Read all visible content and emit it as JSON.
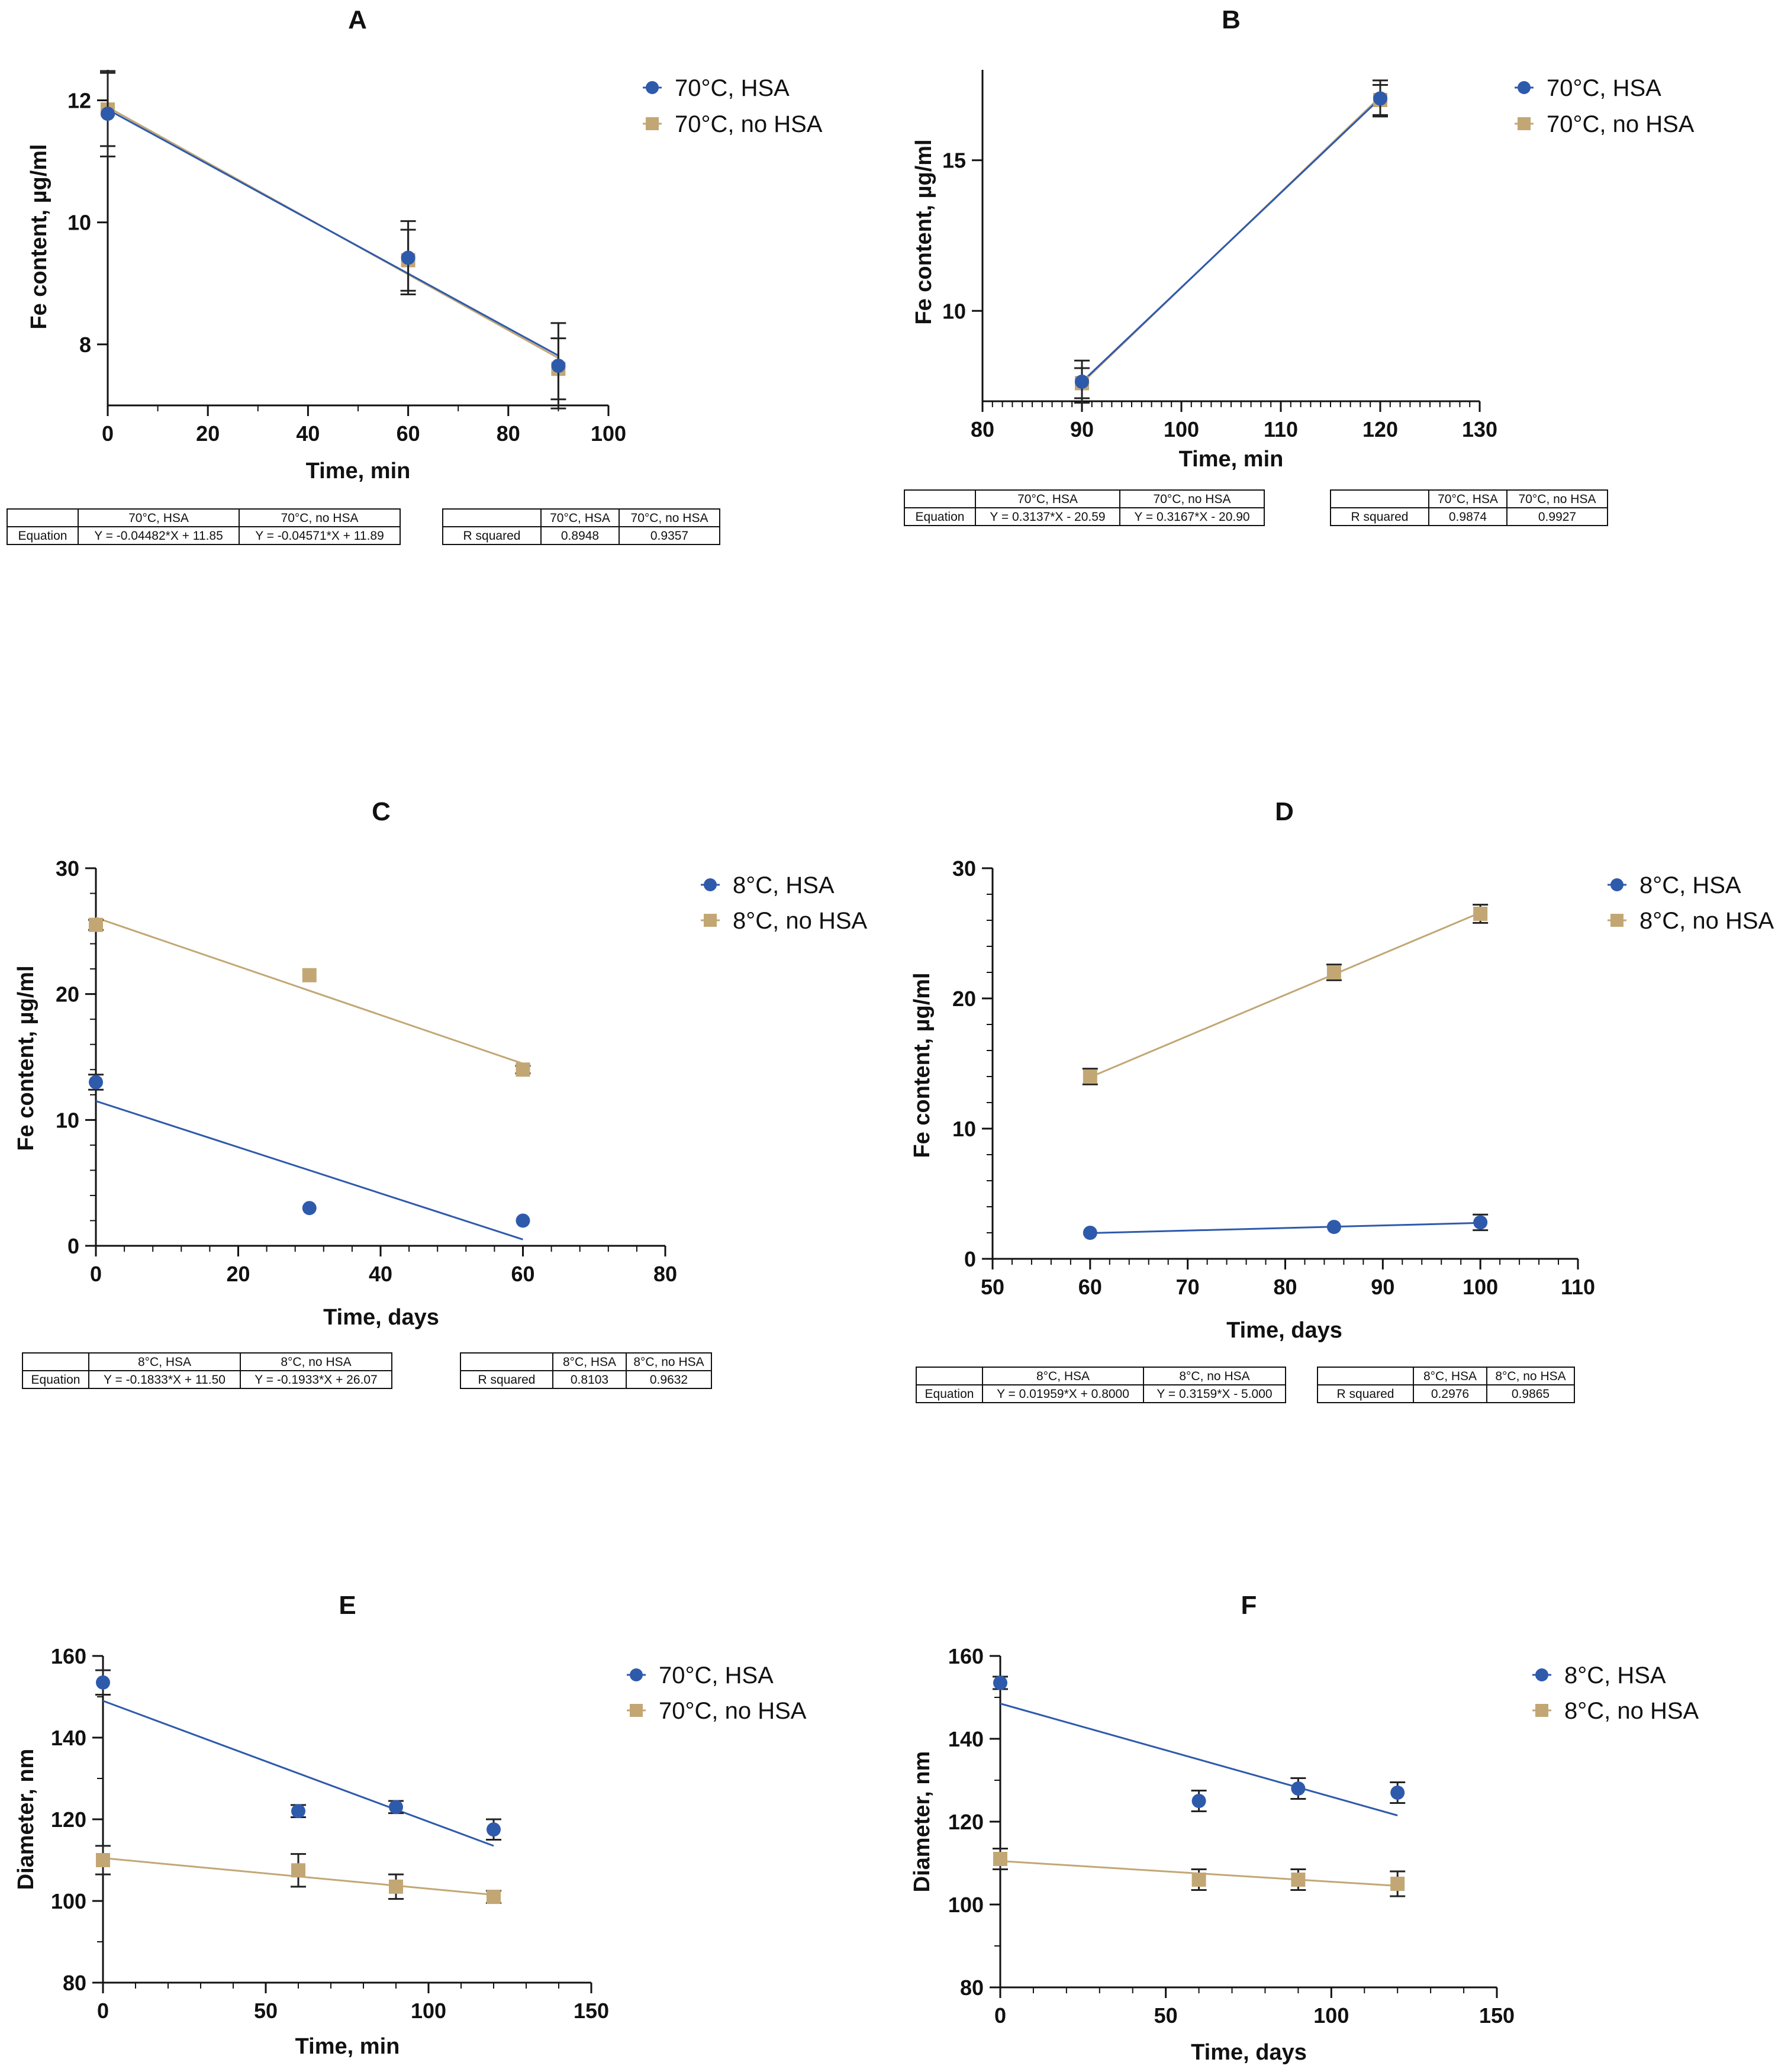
{
  "colors": {
    "hsa": "#2E5AAC",
    "no_hsa": "#C2A775"
  },
  "chart_data": [
    {
      "id": "A",
      "title": "A",
      "type": "scatter",
      "xlabel": "Time, min",
      "ylabel": "Fe content, µg/ml",
      "xlim": [
        0,
        100
      ],
      "ylim": [
        7,
        12.5
      ],
      "xticks": [
        0,
        20,
        40,
        60,
        80,
        100
      ],
      "xminor": [
        10,
        30,
        50,
        70,
        90
      ],
      "yticks": [
        8,
        10,
        12
      ],
      "yminor": [],
      "series": [
        {
          "name": "70°C, HSA",
          "color": "#2E5AAC",
          "marker": "circle",
          "points": [
            {
              "x": 0,
              "y": 11.78,
              "err": 0.7
            },
            {
              "x": 60,
              "y": 9.42,
              "err": 0.6
            },
            {
              "x": 90,
              "y": 7.65,
              "err": 0.7
            }
          ],
          "fit": {
            "slope": -0.04482,
            "intercept": 11.85,
            "x": [
              0,
              90
            ]
          }
        },
        {
          "name": "70°C, no HSA",
          "color": "#C2A775",
          "marker": "square",
          "points": [
            {
              "x": 0,
              "y": 11.85,
              "err": 0.6
            },
            {
              "x": 60,
              "y": 9.38,
              "err": 0.5
            },
            {
              "x": 90,
              "y": 7.6,
              "err": 0.5
            }
          ],
          "fit": {
            "slope": -0.04571,
            "intercept": 11.89,
            "x": [
              0,
              90
            ]
          }
        }
      ],
      "tables": [
        {
          "header": [
            "",
            "70°C, HSA",
            "70°C, no HSA"
          ],
          "row": [
            "Equation",
            "Y = -0.04482*X + 11.85",
            "Y = -0.04571*X + 11.89"
          ]
        },
        {
          "header": [
            "",
            "70°C, HSA",
            "70°C, no HSA"
          ],
          "row": [
            "R squared",
            "0.8948",
            "0.9357"
          ]
        }
      ]
    },
    {
      "id": "B",
      "title": "B",
      "type": "scatter",
      "xlabel": "Time, min",
      "ylabel": "Fe content, µg/ml",
      "xlim": [
        80,
        130
      ],
      "ylim": [
        7,
        18
      ],
      "xticks": [
        80,
        90,
        100,
        110,
        120,
        130
      ],
      "xminor": [
        81,
        82,
        83,
        84,
        85,
        86,
        87,
        88,
        89,
        91,
        92,
        93,
        94,
        95,
        96,
        97,
        98,
        99,
        101,
        102,
        103,
        104,
        105,
        106,
        107,
        108,
        109,
        111,
        112,
        113,
        114,
        115,
        116,
        117,
        118,
        119,
        121,
        122,
        123,
        124,
        125,
        126,
        127,
        128,
        129
      ],
      "yticks": [
        10,
        15
      ],
      "yminor": [],
      "series": [
        {
          "name": "70°C, HSA",
          "color": "#2E5AAC",
          "marker": "circle",
          "points": [
            {
              "x": 90,
              "y": 7.65,
              "err": 0.7
            },
            {
              "x": 120,
              "y": 17.05,
              "err": 0.6
            }
          ],
          "fit": {
            "slope": 0.3137,
            "intercept": -20.59,
            "x": [
              90,
              120
            ]
          }
        },
        {
          "name": "70°C, no HSA",
          "color": "#C2A775",
          "marker": "square",
          "points": [
            {
              "x": 90,
              "y": 7.6,
              "err": 0.5
            },
            {
              "x": 120,
              "y": 17.0,
              "err": 0.5
            }
          ],
          "fit": {
            "slope": 0.3167,
            "intercept": -20.9,
            "x": [
              90,
              120
            ]
          }
        }
      ],
      "tables": [
        {
          "header": [
            "",
            "70°C, HSA",
            "70°C, no HSA"
          ],
          "row": [
            "Equation",
            "Y = 0.3137*X - 20.59",
            "Y = 0.3167*X - 20.90"
          ]
        },
        {
          "header": [
            "",
            "70°C, HSA",
            "70°C, no HSA"
          ],
          "row": [
            "R squared",
            "0.9874",
            "0.9927"
          ]
        }
      ]
    },
    {
      "id": "C",
      "title": "C",
      "type": "scatter",
      "xlabel": "Time, days",
      "ylabel": "Fe content, µg/ml",
      "xlim": [
        0,
        80
      ],
      "ylim": [
        0,
        30
      ],
      "xticks": [
        0,
        20,
        40,
        60,
        80
      ],
      "xminor": [
        4,
        8,
        12,
        16,
        24,
        28,
        32,
        36,
        44,
        48,
        52,
        56,
        64,
        68,
        72,
        76
      ],
      "yticks": [
        0,
        10,
        20,
        30
      ],
      "yminor": [
        2,
        4,
        6,
        8,
        12,
        14,
        16,
        18,
        22,
        24,
        26,
        28
      ],
      "series": [
        {
          "name": "8°C, HSA",
          "color": "#2E5AAC",
          "marker": "circle",
          "points": [
            {
              "x": 0,
              "y": 13.0,
              "err": 0.6
            },
            {
              "x": 30,
              "y": 3.0,
              "err": 0
            },
            {
              "x": 60,
              "y": 2.0,
              "err": 0
            }
          ],
          "fit": {
            "slope": -0.1833,
            "intercept": 11.5,
            "x": [
              0,
              60
            ]
          }
        },
        {
          "name": "8°C, no HSA",
          "color": "#C2A775",
          "marker": "square",
          "points": [
            {
              "x": 0,
              "y": 25.5,
              "err": 0.4
            },
            {
              "x": 30,
              "y": 21.5,
              "err": 0
            },
            {
              "x": 60,
              "y": 14.0,
              "err": 0.3
            }
          ],
          "fit": {
            "slope": -0.1933,
            "intercept": 26.07,
            "x": [
              0,
              60
            ]
          }
        }
      ],
      "tables": [
        {
          "header": [
            "",
            "8°C, HSA",
            "8°C, no HSA"
          ],
          "row": [
            "Equation",
            "Y = -0.1833*X + 11.50",
            "Y = -0.1933*X + 26.07"
          ]
        },
        {
          "header": [
            "",
            "8°C, HSA",
            "8°C, no HSA"
          ],
          "row": [
            "R squared",
            "0.8103",
            "0.9632"
          ]
        }
      ]
    },
    {
      "id": "D",
      "title": "D",
      "type": "scatter",
      "xlabel": "Time, days",
      "ylabel": "Fe content, µg/ml",
      "xlim": [
        50,
        110
      ],
      "ylim": [
        0,
        30
      ],
      "xticks": [
        50,
        60,
        70,
        80,
        90,
        100,
        110
      ],
      "xminor": [
        52,
        54,
        56,
        58,
        62,
        64,
        66,
        68,
        72,
        74,
        76,
        78,
        82,
        84,
        86,
        88,
        92,
        94,
        96,
        98,
        102,
        104,
        106,
        108
      ],
      "yticks": [
        0,
        10,
        20,
        30
      ],
      "yminor": [
        2,
        4,
        6,
        8,
        12,
        14,
        16,
        18,
        22,
        24,
        26,
        28
      ],
      "series": [
        {
          "name": "8°C, HSA",
          "color": "#2E5AAC",
          "marker": "circle",
          "points": [
            {
              "x": 60,
              "y": 2.0,
              "err": 0
            },
            {
              "x": 85,
              "y": 2.45,
              "err": 0
            },
            {
              "x": 100,
              "y": 2.8,
              "err": 0.6
            }
          ],
          "fit": {
            "slope": 0.01959,
            "intercept": 0.8,
            "x": [
              60,
              100
            ]
          }
        },
        {
          "name": "8°C, no HSA",
          "color": "#C2A775",
          "marker": "square",
          "points": [
            {
              "x": 60,
              "y": 14.0,
              "err": 0.6
            },
            {
              "x": 85,
              "y": 22.0,
              "err": 0.6
            },
            {
              "x": 100,
              "y": 26.5,
              "err": 0.7
            }
          ],
          "fit": {
            "slope": 0.3159,
            "intercept": -5.0,
            "x": [
              60,
              100
            ]
          }
        }
      ],
      "tables": [
        {
          "header": [
            "",
            "8°C, HSA",
            "8°C, no HSA"
          ],
          "row": [
            "Equation",
            "Y = 0.01959*X + 0.8000",
            "Y = 0.3159*X - 5.000"
          ]
        },
        {
          "header": [
            "",
            "8°C, HSA",
            "8°C, no HSA"
          ],
          "row": [
            "R squared",
            "0.2976",
            "0.9865"
          ]
        }
      ]
    },
    {
      "id": "E",
      "title": "E",
      "type": "scatter",
      "xlabel": "Time, min",
      "ylabel": "Diameter, nm",
      "xlim": [
        0,
        150
      ],
      "ylim": [
        80,
        160
      ],
      "xticks": [
        0,
        50,
        100,
        150
      ],
      "xminor": [
        10,
        20,
        30,
        40,
        60,
        70,
        80,
        90,
        110,
        120,
        130,
        140
      ],
      "yticks": [
        80,
        100,
        120,
        140,
        160
      ],
      "yminor": [
        90,
        110,
        130,
        150
      ],
      "series": [
        {
          "name": "70°C, HSA",
          "color": "#2E5AAC",
          "marker": "circle",
          "points": [
            {
              "x": 0,
              "y": 153.5,
              "err": 3
            },
            {
              "x": 60,
              "y": 122.0,
              "err": 1.5
            },
            {
              "x": 90,
              "y": 123.0,
              "err": 1.5
            },
            {
              "x": 120,
              "y": 117.5,
              "err": 2.5
            }
          ],
          "fit": {
            "x": [
              0,
              120
            ],
            "y": [
              149,
              113.5
            ]
          }
        },
        {
          "name": "70°C, no HSA",
          "color": "#C2A775",
          "marker": "square",
          "points": [
            {
              "x": 0,
              "y": 110.0,
              "err": 3.5
            },
            {
              "x": 60,
              "y": 107.5,
              "err": 4
            },
            {
              "x": 90,
              "y": 103.5,
              "err": 3
            },
            {
              "x": 120,
              "y": 101.0,
              "err": 1.5
            }
          ],
          "fit": {
            "x": [
              0,
              120
            ],
            "y": [
              110.5,
              101.5
            ]
          }
        }
      ],
      "tables": []
    },
    {
      "id": "F",
      "title": "F",
      "type": "scatter",
      "xlabel": "Time, days",
      "ylabel": "Diameter, nm",
      "xlim": [
        0,
        150
      ],
      "ylim": [
        80,
        160
      ],
      "xticks": [
        0,
        50,
        100,
        150
      ],
      "xminor": [
        10,
        20,
        30,
        40,
        60,
        70,
        80,
        90,
        110,
        120,
        130,
        140
      ],
      "yticks": [
        80,
        100,
        120,
        140,
        160
      ],
      "yminor": [
        90,
        110,
        130,
        150
      ],
      "series": [
        {
          "name": "8°C, HSA",
          "color": "#2E5AAC",
          "marker": "circle",
          "points": [
            {
              "x": 0,
              "y": 153.5,
              "err": 1.5
            },
            {
              "x": 60,
              "y": 125.0,
              "err": 2.5
            },
            {
              "x": 90,
              "y": 128.0,
              "err": 2.5
            },
            {
              "x": 120,
              "y": 127.0,
              "err": 2.5
            }
          ],
          "fit": {
            "x": [
              0,
              120
            ],
            "y": [
              148.5,
              121.5
            ]
          }
        },
        {
          "name": "8°C, no HSA",
          "color": "#C2A775",
          "marker": "square",
          "points": [
            {
              "x": 0,
              "y": 111.0,
              "err": 2.5
            },
            {
              "x": 60,
              "y": 106.0,
              "err": 2.5
            },
            {
              "x": 90,
              "y": 106.0,
              "err": 2.5
            },
            {
              "x": 120,
              "y": 105.0,
              "err": 3
            }
          ],
          "fit": {
            "x": [
              0,
              120
            ],
            "y": [
              110.5,
              104.5
            ]
          }
        }
      ],
      "tables": []
    }
  ]
}
